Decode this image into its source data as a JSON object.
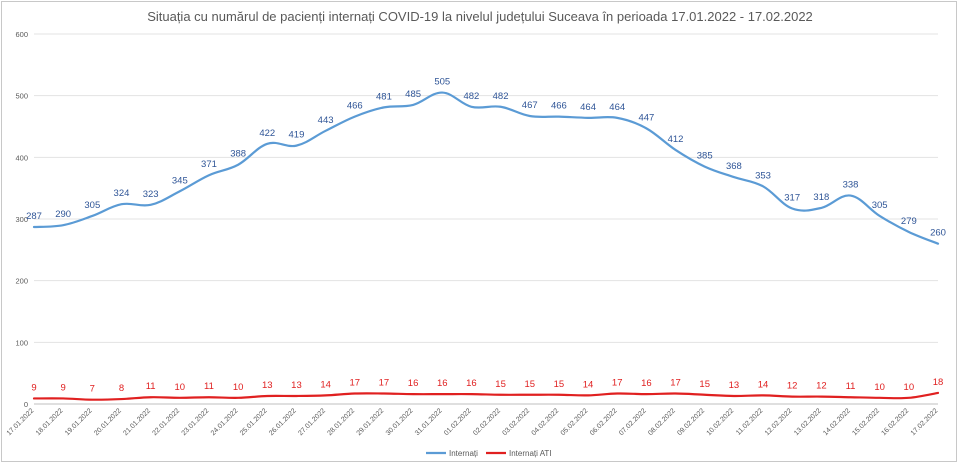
{
  "chart_data": {
    "type": "line",
    "title": "Situația cu numărul de pacienți internați COVID-19 la nivelul județului Suceava în perioada 17.01.2022 - 17.02.2022",
    "xlabel": "",
    "ylabel": "",
    "ylim": [
      0,
      600
    ],
    "yticks": [
      0,
      100,
      200,
      300,
      400,
      500,
      600
    ],
    "grid": true,
    "legend_position": "bottom",
    "categories": [
      "17.01.2022",
      "18.01.2022",
      "19.01.2022",
      "20.01.2022",
      "21.01.2022",
      "22.01.2022",
      "23.01.2022",
      "24.01.2022",
      "25.01.2022",
      "26.01.2022",
      "27.01.2022",
      "28.01.2022",
      "29.01.2022",
      "30.01.2022",
      "31.01.2022",
      "01.02.2022",
      "02.02.2022",
      "03.02.2022",
      "04.02.2022",
      "05.02.2022",
      "06.02.2022",
      "07.02.2022",
      "08.02.2022",
      "09.02.2022",
      "10.02.2022",
      "11.02.2022",
      "12.02.2022",
      "13.02.2022",
      "14.02.2022",
      "15.02.2022",
      "16.02.2022",
      "17.02.2022"
    ],
    "series": [
      {
        "name": "Internați",
        "color": "#5b9bd5",
        "label_color": "#2f5597",
        "values": [
          287,
          290,
          305,
          324,
          323,
          345,
          371,
          388,
          422,
          419,
          443,
          466,
          481,
          485,
          505,
          482,
          482,
          467,
          466,
          464,
          464,
          447,
          412,
          385,
          368,
          353,
          317,
          318,
          338,
          305,
          279,
          260
        ]
      },
      {
        "name": "Internați ATI",
        "color": "#e02020",
        "label_color": "#e02020",
        "values": [
          9,
          9,
          7,
          8,
          11,
          10,
          11,
          10,
          13,
          13,
          14,
          17,
          17,
          16,
          16,
          16,
          15,
          15,
          15,
          14,
          17,
          16,
          17,
          15,
          13,
          14,
          12,
          12,
          11,
          10,
          10,
          18
        ]
      }
    ]
  }
}
